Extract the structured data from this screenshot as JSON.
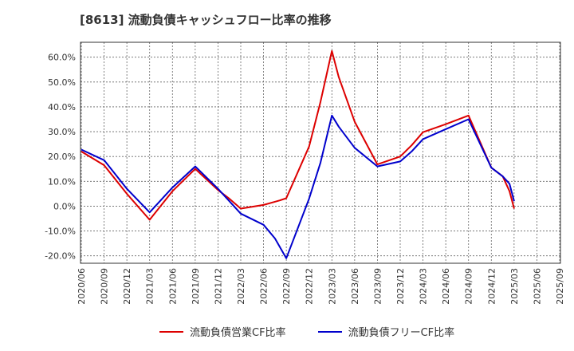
{
  "chart_data": {
    "type": "line",
    "title": "[8613]  流動負債キャッシュフロー比率の推移",
    "xlabel": "",
    "ylabel": "",
    "ylim": [
      -23,
      66
    ],
    "yticks": [
      "60.0%",
      "50.0%",
      "40.0%",
      "30.0%",
      "20.0%",
      "10.0%",
      "0.0%",
      "-10.0%",
      "-20.0%"
    ],
    "ytick_values": [
      60,
      50,
      40,
      30,
      20,
      10,
      0,
      -10,
      -20
    ],
    "xticks": [
      "2020/06",
      "2020/09",
      "2020/12",
      "2021/03",
      "2021/06",
      "2021/09",
      "2021/12",
      "2022/03",
      "2022/06",
      "2022/09",
      "2022/12",
      "2023/03",
      "2023/06",
      "2023/09",
      "2023/12",
      "2024/03",
      "2024/06",
      "2024/09",
      "2024/12",
      "2025/03",
      "2025/06",
      "2025/09"
    ],
    "grid": true,
    "legend_position": "bottom",
    "series": [
      {
        "name": "流動負債営業CF比率",
        "color": "#dd0000",
        "points": [
          [
            0,
            22.0
          ],
          [
            1,
            16.5
          ],
          [
            2,
            5.0
          ],
          [
            3,
            -5.5
          ],
          [
            4,
            6.0
          ],
          [
            5,
            15.0
          ],
          [
            6,
            6.5
          ],
          [
            6.5,
            3.0
          ],
          [
            7,
            -1.0
          ],
          [
            8,
            0.5
          ],
          [
            8.7,
            2.3
          ],
          [
            9,
            3.2
          ],
          [
            10,
            24.0
          ],
          [
            10.5,
            42.0
          ],
          [
            11,
            62.5
          ],
          [
            11.3,
            52.0
          ],
          [
            12,
            34.0
          ],
          [
            13,
            16.8
          ],
          [
            14,
            20.0
          ],
          [
            14.5,
            24.5
          ],
          [
            15,
            29.8
          ],
          [
            16,
            33.0
          ],
          [
            17,
            36.5
          ],
          [
            18,
            15.5
          ],
          [
            18.5,
            12.0
          ],
          [
            18.8,
            6.0
          ],
          [
            19,
            -1.0
          ]
        ]
      },
      {
        "name": "流動負債フリーCF比率",
        "color": "#0000cc",
        "points": [
          [
            0,
            22.8
          ],
          [
            1,
            18.5
          ],
          [
            2,
            7.0
          ],
          [
            3,
            -2.5
          ],
          [
            4,
            7.5
          ],
          [
            5,
            16.0
          ],
          [
            6,
            7.0
          ],
          [
            6.5,
            2.0
          ],
          [
            7,
            -3.0
          ],
          [
            8,
            -7.5
          ],
          [
            8.5,
            -13.0
          ],
          [
            9,
            -21.0
          ],
          [
            10,
            3.0
          ],
          [
            10.5,
            17.5
          ],
          [
            11,
            36.5
          ],
          [
            11.3,
            32.0
          ],
          [
            12,
            23.5
          ],
          [
            13,
            16.0
          ],
          [
            14,
            18.0
          ],
          [
            14.5,
            22.0
          ],
          [
            15,
            27.0
          ],
          [
            16,
            31.0
          ],
          [
            17,
            35.0
          ],
          [
            18,
            15.5
          ],
          [
            18.5,
            12.0
          ],
          [
            18.8,
            9.0
          ],
          [
            19,
            2.0
          ]
        ]
      }
    ]
  },
  "legend": {
    "series0_label": "流動負債営業CF比率",
    "series1_label": "流動負債フリーCF比率"
  }
}
